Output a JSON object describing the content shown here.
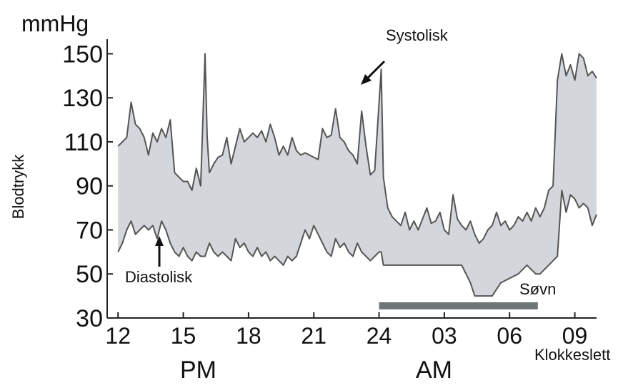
{
  "chart_data": {
    "type": "area",
    "unit_label": "mmHg",
    "ylabel": "Blodtrykk",
    "xlabel": "Klokkeslett",
    "ylim": [
      30,
      155
    ],
    "xlim": [
      11.5,
      34
    ],
    "y_ticks": [
      "150",
      "130",
      "110",
      "90",
      "70",
      "50",
      "30"
    ],
    "y_tick_values": [
      150,
      130,
      110,
      90,
      70,
      50,
      30
    ],
    "x_ticks": [
      "12",
      "15",
      "18",
      "21",
      "24",
      "03",
      "06",
      "09"
    ],
    "x_tick_values": [
      12,
      15,
      18,
      21,
      24,
      27,
      30,
      33
    ],
    "period_labels": [
      "PM",
      "AM"
    ],
    "annotations": {
      "systolic": "Systolisk",
      "diastolic": "Diastolisk",
      "sleep": "Søvn"
    },
    "sleep_period": [
      24,
      31.3
    ],
    "colors": {
      "band": "#d3d7db",
      "line": "#555555",
      "sleep_bar": "#6f7677",
      "axis": "#222222"
    },
    "series": [
      {
        "name": "Systolisk",
        "x": [
          12,
          12.2,
          12.4,
          12.6,
          12.8,
          13.0,
          13.2,
          13.4,
          13.6,
          13.8,
          14.0,
          14.2,
          14.4,
          14.6,
          14.8,
          15.0,
          15.2,
          15.4,
          15.6,
          15.8,
          16.0,
          16.1,
          16.2,
          16.4,
          16.6,
          16.8,
          17.0,
          17.2,
          17.4,
          17.6,
          17.8,
          18.0,
          18.2,
          18.4,
          18.6,
          18.8,
          19.0,
          19.2,
          19.4,
          19.6,
          19.8,
          20.0,
          20.2,
          20.4,
          20.6,
          20.8,
          21.0,
          21.2,
          21.4,
          21.6,
          21.8,
          22.0,
          22.2,
          22.4,
          22.6,
          22.8,
          23.0,
          23.2,
          23.4,
          23.6,
          23.8,
          24.0,
          24.1,
          24.2,
          24.4,
          24.6,
          24.8,
          25.0,
          25.2,
          25.4,
          25.6,
          25.8,
          26.0,
          26.2,
          26.4,
          26.6,
          26.8,
          27.0,
          27.2,
          27.4,
          27.6,
          27.8,
          28.0,
          28.2,
          28.4,
          28.6,
          28.8,
          29.0,
          29.2,
          29.4,
          29.6,
          29.8,
          30.0,
          30.2,
          30.4,
          30.6,
          30.8,
          31.0,
          31.2,
          31.4,
          31.6,
          31.8,
          32.0,
          32.2,
          32.4,
          32.6,
          32.8,
          33.0,
          33.2,
          33.4,
          33.6,
          33.8,
          34.0
        ],
        "values": [
          108,
          110,
          112,
          128,
          118,
          116,
          112,
          104,
          114,
          110,
          116,
          112,
          120,
          96,
          94,
          92,
          92,
          88,
          98,
          90,
          150,
          112,
          96,
          100,
          103,
          104,
          112,
          100,
          108,
          116,
          110,
          112,
          114,
          112,
          115,
          110,
          118,
          112,
          104,
          108,
          104,
          112,
          106,
          104,
          105,
          104,
          103,
          102,
          116,
          112,
          113,
          125,
          112,
          110,
          106,
          104,
          100,
          124,
          108,
          95,
          97,
          128,
          143,
          94,
          80,
          76,
          74,
          72,
          78,
          70,
          74,
          70,
          75,
          80,
          73,
          74,
          78,
          70,
          68,
          86,
          75,
          72,
          70,
          74,
          68,
          64,
          66,
          70,
          72,
          78,
          72,
          74,
          70,
          72,
          76,
          74,
          78,
          74,
          80,
          76,
          80,
          88,
          90,
          138,
          150,
          140,
          145,
          138,
          150,
          148,
          140,
          142,
          139
        ],
        "_note": ""
      },
      {
        "name": "Diastolisk",
        "x": [
          12,
          12.2,
          12.4,
          12.6,
          12.8,
          13.0,
          13.2,
          13.4,
          13.6,
          13.8,
          14.0,
          14.2,
          14.4,
          14.6,
          14.8,
          15.0,
          15.2,
          15.4,
          15.6,
          15.8,
          16.0,
          16.2,
          16.4,
          16.6,
          16.8,
          17.0,
          17.2,
          17.4,
          17.6,
          17.8,
          18.0,
          18.2,
          18.4,
          18.6,
          18.8,
          19.0,
          19.2,
          19.4,
          19.6,
          19.8,
          20.0,
          20.2,
          20.4,
          20.6,
          20.8,
          21.0,
          21.2,
          21.4,
          21.6,
          21.8,
          22.0,
          22.2,
          22.4,
          22.6,
          22.8,
          23.0,
          23.2,
          23.4,
          23.6,
          23.8,
          24.0,
          24.1,
          24.2,
          24.6,
          25.0,
          25.4,
          25.8,
          26.2,
          26.6,
          27.0,
          27.4,
          27.8,
          28.0,
          28.2,
          28.4,
          28.8,
          29.2,
          29.6,
          30.0,
          30.4,
          30.8,
          31.0,
          31.2,
          31.4,
          31.6,
          31.8,
          32.0,
          32.2,
          32.4,
          32.6,
          32.8,
          33.0,
          33.2,
          33.4,
          33.6,
          33.8,
          34.0
        ],
        "values": [
          60,
          64,
          70,
          74,
          68,
          70,
          72,
          70,
          72,
          66,
          74,
          70,
          64,
          60,
          58,
          62,
          58,
          56,
          60,
          58,
          58,
          64,
          60,
          58,
          60,
          58,
          56,
          66,
          62,
          64,
          60,
          58,
          62,
          58,
          60,
          56,
          58,
          56,
          54,
          58,
          56,
          58,
          64,
          70,
          66,
          72,
          68,
          64,
          60,
          58,
          66,
          62,
          64,
          60,
          58,
          64,
          60,
          58,
          56,
          58,
          60,
          60,
          54,
          54,
          54,
          54,
          54,
          54,
          54,
          54,
          54,
          54,
          50,
          46,
          40,
          40,
          40,
          46,
          48,
          50,
          54,
          52,
          50,
          50,
          52,
          54,
          56,
          58,
          88,
          78,
          86,
          84,
          80,
          82,
          80,
          72,
          77
        ],
        "_note": ""
      }
    ]
  }
}
